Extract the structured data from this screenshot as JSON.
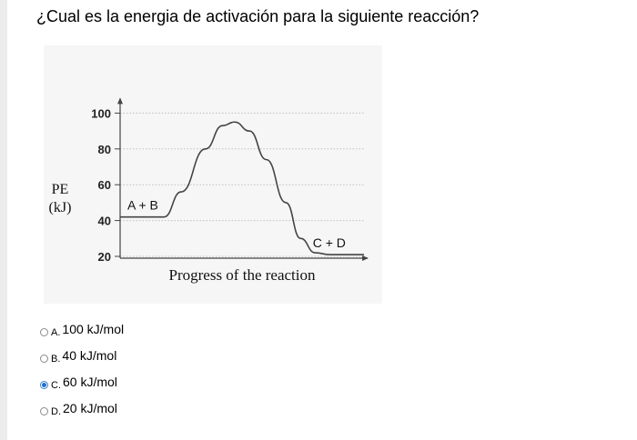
{
  "question": "¿Cual es la energia de activación para la siguiente reacción?",
  "chart_data": {
    "type": "line",
    "ylabel_line1": "PE",
    "ylabel_line2": "(kJ)",
    "xlabel": "Progress of the reaction",
    "yticks": [
      20,
      40,
      60,
      80,
      100
    ],
    "grid": "dotted",
    "annotations": [
      "A + B",
      "C + D"
    ],
    "series": [
      {
        "values": [
          {
            "x": 0,
            "y": 42
          },
          {
            "x": 0.18,
            "y": 42
          },
          {
            "x": 0.25,
            "y": 56
          },
          {
            "x": 0.35,
            "y": 80
          },
          {
            "x": 0.42,
            "y": 93
          },
          {
            "x": 0.47,
            "y": 95
          },
          {
            "x": 0.53,
            "y": 90
          },
          {
            "x": 0.6,
            "y": 74
          },
          {
            "x": 0.68,
            "y": 50
          },
          {
            "x": 0.74,
            "y": 30
          },
          {
            "x": 0.8,
            "y": 22
          },
          {
            "x": 0.86,
            "y": 21
          },
          {
            "x": 1,
            "y": 21
          }
        ]
      }
    ]
  },
  "options": [
    {
      "letter": "A.",
      "label": "100 kJ/mol",
      "selected": false
    },
    {
      "letter": "B.",
      "label": "40 kJ/mol",
      "selected": false
    },
    {
      "letter": "C.",
      "label": "60 kJ/mol",
      "selected": true
    },
    {
      "letter": "D.",
      "label": "20 kJ/mol",
      "selected": false
    }
  ],
  "colors": {
    "radio_selected": "#1f6fd1",
    "chart_line": "#444444"
  }
}
